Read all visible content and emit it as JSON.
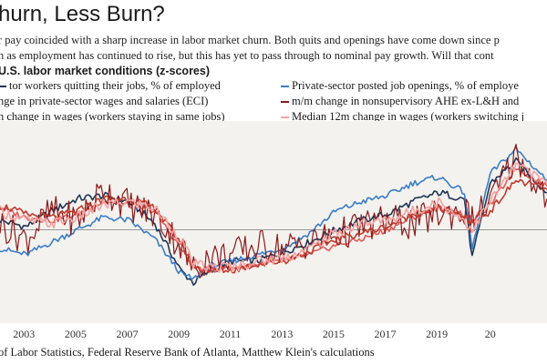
{
  "title": "hurn, Less Burn?",
  "subtitle_line1": "r pay coincided with a sharp increase in labor market churn. Both quits and openings have come down since p",
  "subtitle_line2": "n as employment has continued to rise, but this has yet to pass through to nominal pay growth. Will that cont",
  "source": "of Labor Statistics, Federal Reserve Bank of Atlanta, Matthew Klein's calculations",
  "colors": {
    "background": "#f4f2ee",
    "quits": "#1d3557",
    "openings": "#3a7cc7",
    "eci": "#e05a5a",
    "ahe": "#8b1a1a",
    "stayers": "#c0392b",
    "switchers": "#f2a3a3",
    "zero_line": "#999999"
  },
  "chart_data": {
    "type": "line",
    "title": "U.S. labor market conditions (z-scores)",
    "xlabel": "",
    "ylabel": "",
    "x_ticks": [
      "2003",
      "2005",
      "2007",
      "2009",
      "2011",
      "2013",
      "2015",
      "2017",
      "2019",
      "20"
    ],
    "xlim": [
      2002.0,
      2023.2
    ],
    "ylim": [
      -3.0,
      3.5
    ],
    "grid": false,
    "legend_position": "top",
    "series": [
      {
        "name": "tor workers quitting their jobs, % of employed",
        "color": "#1d3557",
        "x": [
          2002.0,
          2003.0,
          2004.0,
          2005.0,
          2006.0,
          2007.0,
          2008.0,
          2009.0,
          2009.5,
          2010.0,
          2011.0,
          2012.0,
          2013.0,
          2014.0,
          2015.0,
          2016.0,
          2017.0,
          2018.0,
          2019.0,
          2020.0,
          2020.3,
          2021.0,
          2022.0,
          2023.2
        ],
        "y": [
          0.3,
          0.1,
          0.6,
          1.0,
          1.1,
          0.9,
          0.2,
          -1.3,
          -1.7,
          -1.4,
          -1.0,
          -1.0,
          -0.7,
          -0.4,
          0.0,
          0.3,
          0.5,
          0.9,
          1.2,
          1.0,
          -0.9,
          1.5,
          2.2,
          1.2
        ]
      },
      {
        "name": "Private-sector posted job openings, % of employe",
        "color": "#3a7cc7",
        "x": [
          2002.0,
          2003.0,
          2004.0,
          2005.0,
          2006.0,
          2007.0,
          2008.0,
          2009.0,
          2009.5,
          2010.0,
          2011.0,
          2012.0,
          2013.0,
          2014.0,
          2015.0,
          2016.0,
          2017.0,
          2018.0,
          2019.0,
          2020.0,
          2020.3,
          2021.0,
          2022.0,
          2023.2
        ],
        "y": [
          -0.6,
          -0.8,
          -0.4,
          0.0,
          0.4,
          0.3,
          -0.3,
          -1.4,
          -1.6,
          -1.2,
          -1.0,
          -0.8,
          -0.6,
          -0.1,
          0.6,
          0.9,
          1.1,
          1.5,
          1.7,
          1.2,
          -0.6,
          1.8,
          2.6,
          1.6
        ]
      },
      {
        "name": "nge in private-sector wages and salaries (ECI)",
        "color": "#e05a5a",
        "x": [
          2002.0,
          2003.0,
          2004.0,
          2005.0,
          2006.0,
          2007.0,
          2008.0,
          2009.0,
          2009.5,
          2010.0,
          2011.0,
          2012.0,
          2013.0,
          2014.0,
          2015.0,
          2016.0,
          2017.0,
          2018.0,
          2019.0,
          2020.0,
          2020.3,
          2021.0,
          2022.0,
          2023.2
        ],
        "y": [
          0.7,
          0.4,
          0.3,
          0.5,
          0.9,
          0.8,
          0.6,
          -0.6,
          -1.2,
          -1.3,
          -1.2,
          -1.1,
          -1.0,
          -0.8,
          -0.5,
          -0.3,
          0.0,
          0.4,
          0.7,
          0.5,
          0.3,
          0.8,
          2.0,
          1.4
        ]
      },
      {
        "name": "m/m change in nonsupervisory AHE ex-L&H and",
        "color": "#8b1a1a",
        "x": [
          2002.0,
          2003.0,
          2004.0,
          2005.0,
          2006.0,
          2007.0,
          2008.0,
          2009.0,
          2009.5,
          2010.0,
          2011.0,
          2012.0,
          2013.0,
          2014.0,
          2015.0,
          2016.0,
          2017.0,
          2018.0,
          2019.0,
          2020.0,
          2020.3,
          2021.0,
          2022.0,
          2023.2
        ],
        "y": [
          0.2,
          -0.3,
          0.6,
          0.3,
          1.3,
          0.8,
          0.5,
          -0.5,
          -1.3,
          -0.9,
          -0.8,
          -0.5,
          -0.6,
          -0.4,
          -0.2,
          0.1,
          0.3,
          0.2,
          0.5,
          0.6,
          0.3,
          0.9,
          2.4,
          1.0
        ]
      },
      {
        "name": "n change in wages (workers staying in same jobs)",
        "color": "#c0392b",
        "x": [
          2002.0,
          2003.0,
          2004.0,
          2005.0,
          2006.0,
          2007.0,
          2008.0,
          2009.0,
          2009.5,
          2010.0,
          2011.0,
          2012.0,
          2013.0,
          2014.0,
          2015.0,
          2016.0,
          2017.0,
          2018.0,
          2019.0,
          2020.0,
          2020.3,
          2021.0,
          2022.0,
          2023.2
        ],
        "y": [
          0.8,
          0.5,
          0.4,
          0.6,
          1.0,
          1.0,
          0.7,
          -0.4,
          -1.2,
          -1.3,
          -1.3,
          -1.1,
          -1.0,
          -0.7,
          -0.3,
          -0.1,
          0.1,
          0.5,
          0.7,
          0.4,
          0.2,
          0.6,
          1.6,
          1.3
        ]
      },
      {
        "name": "Median 12m change in wages (workers switching j",
        "color": "#f2a3a3",
        "x": [
          2002.0,
          2003.0,
          2004.0,
          2005.0,
          2006.0,
          2007.0,
          2008.0,
          2009.0,
          2009.5,
          2010.0,
          2011.0,
          2012.0,
          2013.0,
          2014.0,
          2015.0,
          2016.0,
          2017.0,
          2018.0,
          2019.0,
          2020.0,
          2020.3,
          2021.0,
          2022.0,
          2023.2
        ],
        "y": [
          0.6,
          0.3,
          0.2,
          0.4,
          0.8,
          0.9,
          0.7,
          -0.3,
          -1.1,
          -1.2,
          -1.2,
          -1.0,
          -0.9,
          -0.6,
          -0.1,
          0.2,
          0.3,
          0.6,
          0.9,
          0.3,
          0.0,
          0.9,
          2.1,
          1.5
        ]
      }
    ]
  }
}
